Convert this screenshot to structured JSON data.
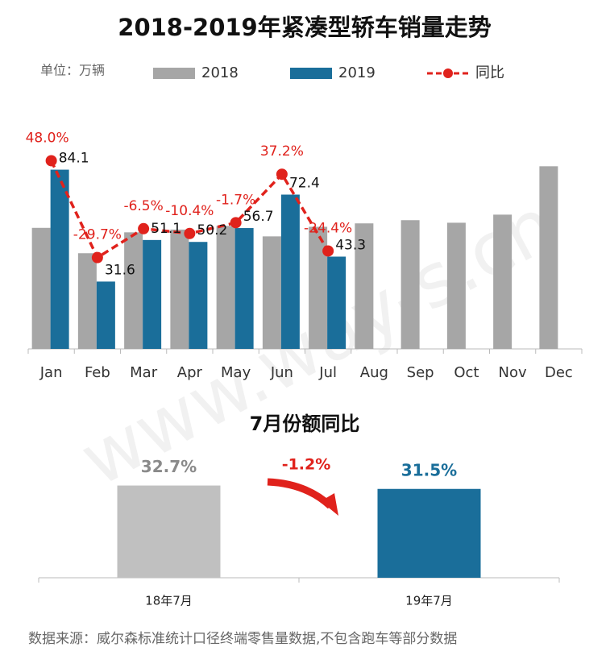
{
  "chart_data": [
    {
      "type": "bar-line",
      "title": "2018-2019年紧凑型轿车销量走势",
      "unit_label": "单位：万辆",
      "categories": [
        "Jan",
        "Feb",
        "Mar",
        "Apr",
        "May",
        "Jun",
        "Jul",
        "Aug",
        "Sep",
        "Oct",
        "Nov",
        "Dec"
      ],
      "series": [
        {
          "name": "2018",
          "color": "#a6a6a6",
          "values": [
            56.8,
            44.9,
            54.7,
            56.0,
            57.7,
            52.8,
            57.3,
            58.9,
            60.4,
            59.2,
            63.0,
            85.7
          ]
        },
        {
          "name": "2019",
          "color": "#1a6e9a",
          "values": [
            84.1,
            31.6,
            51.1,
            50.2,
            56.7,
            72.4,
            43.3,
            null,
            null,
            null,
            null,
            null
          ]
        },
        {
          "name": "同比",
          "color": "#e0221c",
          "axis": "y2",
          "dashed": true,
          "values": [
            48.0,
            -29.7,
            -6.5,
            -10.4,
            -1.7,
            37.2,
            -24.4,
            null,
            null,
            null,
            null,
            null
          ],
          "value_labels": [
            "48.0%",
            "-29.7%",
            "-6.5%",
            "-10.4%",
            "-1.7%",
            "37.2%",
            "-24.4%",
            null,
            null,
            null,
            null,
            null
          ]
        }
      ],
      "ylim": [
        0,
        107
      ],
      "y2lim": [
        -103,
        80
      ],
      "legend": "top"
    },
    {
      "type": "bar",
      "title": "7月份额同比",
      "categories": [
        "18年7月",
        "19年7月"
      ],
      "values": [
        32.7,
        31.5
      ],
      "value_labels": [
        "32.7%",
        "31.5%"
      ],
      "colors": [
        "#c0c0c0",
        "#1a6e9a"
      ],
      "ylim": [
        0,
        40
      ],
      "annotation": "-1.2%"
    }
  ],
  "source": "数据来源：威尔森标准统计口径终端零售量数据,不包含跑车等部分数据",
  "watermark": "www.way-s.cn"
}
